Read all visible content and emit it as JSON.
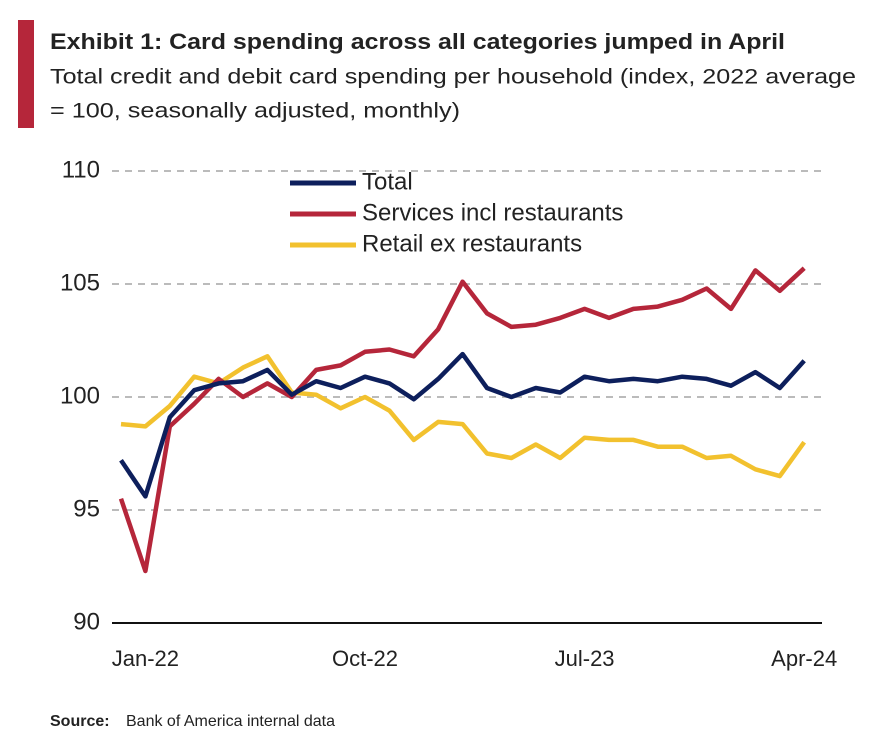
{
  "chart_data": {
    "type": "line",
    "title": "Exhibit 1: Card spending across all categories jumped in April",
    "subtitle": [
      "Total credit and debit card spending per household (index, 2022 average",
      "= 100, seasonally adjusted, monthly)"
    ],
    "source_label": "Source:",
    "source": "Bank of America internal data",
    "categories": [
      null,
      "Jan-22",
      null,
      null,
      null,
      null,
      null,
      null,
      null,
      null,
      "Oct-22",
      null,
      null,
      null,
      null,
      null,
      null,
      null,
      null,
      "Jul-23",
      null,
      null,
      null,
      null,
      null,
      null,
      null,
      null,
      "Apr-24"
    ],
    "series": [
      {
        "name": "Total",
        "color": "#0d1f5c",
        "values": [
          97.2,
          95.6,
          99.1,
          100.3,
          100.6,
          100.7,
          101.2,
          100.1,
          100.7,
          100.4,
          100.9,
          100.6,
          99.9,
          100.8,
          101.9,
          100.4,
          100.0,
          100.4,
          100.2,
          100.9,
          100.7,
          100.8,
          100.7,
          100.9,
          100.8,
          100.5,
          101.1,
          100.4,
          101.6
        ]
      },
      {
        "name": "Services incl restaurants",
        "color": "#b5263a",
        "values": [
          95.5,
          92.3,
          98.7,
          99.7,
          100.8,
          100.0,
          100.6,
          100.0,
          101.2,
          101.4,
          102.0,
          102.1,
          101.8,
          103.0,
          105.1,
          103.7,
          103.1,
          103.2,
          103.5,
          103.9,
          103.5,
          103.9,
          104.0,
          104.3,
          104.8,
          103.9,
          105.6,
          104.7,
          105.7
        ]
      },
      {
        "name": "Retail ex restaurants",
        "color": "#f2c12e",
        "values": [
          98.8,
          98.7,
          99.6,
          100.9,
          100.6,
          101.3,
          101.8,
          100.2,
          100.1,
          99.5,
          100.0,
          99.4,
          98.1,
          98.9,
          98.8,
          97.5,
          97.3,
          97.9,
          97.3,
          98.2,
          98.1,
          98.1,
          97.8,
          97.8,
          97.3,
          97.4,
          96.8,
          96.5,
          98.0
        ]
      }
    ],
    "ylim": [
      90,
      110
    ],
    "yticks": [
      90,
      95,
      100,
      105,
      110
    ],
    "grid": true
  }
}
